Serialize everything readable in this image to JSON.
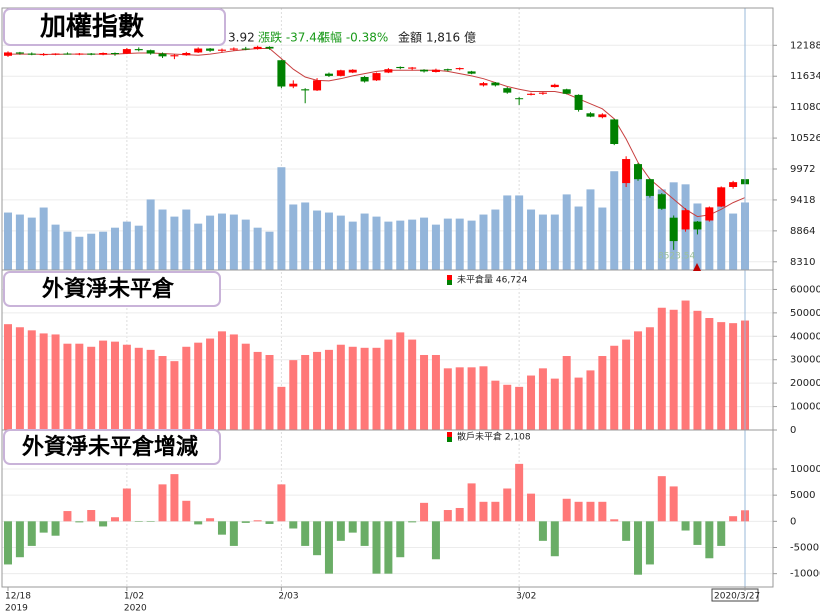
{
  "chart_data": [
    {
      "type": "candlestick",
      "title": "加權指數",
      "quote": [
        "3.92",
        "漲跌 -37.44",
        "漲幅 -0.38%",
        "金額 1,816 億"
      ],
      "low_label": "8523.54",
      "categories": [
        "12/18",
        null,
        null,
        null,
        null,
        null,
        null,
        null,
        null,
        null,
        "1/02",
        null,
        null,
        null,
        null,
        null,
        null,
        null,
        null,
        null,
        null,
        null,
        null,
        "2/03",
        null,
        null,
        null,
        null,
        null,
        null,
        null,
        null,
        null,
        null,
        null,
        null,
        null,
        null,
        null,
        null,
        null,
        null,
        null,
        "3/02",
        null,
        null,
        null,
        null,
        null,
        null,
        null,
        null,
        null,
        null,
        null,
        null,
        null,
        null,
        null,
        null,
        null,
        null,
        "2020/3/27"
      ],
      "year_row": [
        "2019",
        null,
        null,
        null,
        null,
        null,
        null,
        null,
        null,
        null,
        "2020",
        null,
        null,
        null,
        null,
        null,
        null,
        null,
        null,
        null,
        null,
        null,
        null,
        null,
        null,
        null,
        null,
        null,
        null,
        null,
        null,
        null,
        null,
        null,
        null,
        null,
        null,
        null,
        null,
        null,
        null,
        null,
        null,
        null,
        null,
        null,
        null,
        null,
        null,
        null,
        null,
        null,
        null,
        null,
        null,
        null,
        null,
        null,
        null,
        null,
        null,
        null,
        null
      ],
      "open": [
        12000,
        12060,
        12040,
        12020,
        12030,
        12040,
        12030,
        12040,
        12020,
        12050,
        12040,
        12120,
        12100,
        12040,
        11990,
        12010,
        12060,
        12130,
        12090,
        12110,
        12130,
        12120,
        12160,
        11920,
        11450,
        11400,
        11380,
        11680,
        11640,
        11700,
        11620,
        11560,
        11700,
        11800,
        11770,
        11750,
        11710,
        11760,
        11760,
        11720,
        11470,
        11520,
        11420,
        11240,
        11300,
        11320,
        11440,
        11400,
        11300,
        10970,
        10900,
        10860,
        9720,
        10060,
        9790,
        9520,
        9100,
        8890,
        9030,
        9050,
        9300,
        9650,
        9790
      ],
      "high": [
        12080,
        12070,
        12060,
        12050,
        12045,
        12060,
        12050,
        12050,
        12060,
        12060,
        12140,
        12150,
        12110,
        12060,
        12030,
        12070,
        12150,
        12140,
        12130,
        12150,
        12160,
        12180,
        12170,
        11930,
        11560,
        11420,
        11600,
        11700,
        11750,
        11760,
        11640,
        11700,
        11780,
        11810,
        11800,
        11760,
        11770,
        11770,
        11790,
        11730,
        11530,
        11530,
        11440,
        11260,
        11340,
        11350,
        11500,
        11410,
        11310,
        10990,
        10970,
        10870,
        10200,
        10080,
        9800,
        9540,
        9140,
        9270,
        9040,
        9300,
        9660,
        9760,
        9800
      ],
      "low": [
        11980,
        12020,
        12010,
        12000,
        12010,
        12020,
        12010,
        12010,
        12010,
        12000,
        12030,
        12080,
        12020,
        11960,
        11940,
        12000,
        12050,
        12070,
        12060,
        12090,
        12100,
        12110,
        12110,
        11420,
        11420,
        11150,
        11370,
        11620,
        11630,
        11690,
        11520,
        11550,
        11690,
        11760,
        11740,
        11700,
        11700,
        11720,
        11740,
        11670,
        11450,
        11450,
        11320,
        11120,
        11290,
        11300,
        11430,
        11310,
        11000,
        10900,
        10880,
        10400,
        9650,
        9760,
        9460,
        9240,
        8523.54,
        8850,
        8800,
        9030,
        9290,
        9620,
        9680
      ],
      "close": [
        12060,
        12040,
        12020,
        12030,
        12040,
        12030,
        12040,
        12020,
        12050,
        12030,
        12120,
        12100,
        12040,
        11990,
        12010,
        12050,
        12130,
        12090,
        12110,
        12130,
        12120,
        12160,
        12130,
        11450,
        11500,
        11380,
        11560,
        11640,
        11740,
        11750,
        11540,
        11690,
        11760,
        11780,
        11790,
        11720,
        11750,
        11740,
        11780,
        11680,
        11510,
        11470,
        11340,
        11230,
        11320,
        11340,
        11480,
        11320,
        11030,
        10910,
        10950,
        10420,
        10150,
        9790,
        9490,
        9260,
        8681,
        9234,
        8890,
        9285,
        9644,
        9736.36,
        9698.92
      ],
      "up_color": "#ff0000",
      "down_color": "#008000",
      "ma": {
        "color": "#c84040",
        "values": [
          12030,
          12030,
          12030,
          12025,
          12025,
          12030,
          12030,
          12030,
          12030,
          12030,
          12040,
          12050,
          12050,
          12040,
          12030,
          12020,
          12010,
          12030,
          12060,
          12090,
          12110,
          12130,
          12130,
          11950,
          11760,
          11620,
          11560,
          11550,
          11590,
          11640,
          11680,
          11720,
          11740,
          11740,
          11740,
          11740,
          11740,
          11720,
          11680,
          11640,
          11590,
          11520,
          11450,
          11400,
          11360,
          11360,
          11360,
          11320,
          11230,
          11140,
          11050,
          10870,
          10510,
          10090,
          9790,
          9610,
          9430,
          9250,
          9120,
          9150,
          9250,
          9370,
          9460
        ]
      },
      "volume": {
        "color": "#93b5da",
        "lim": [
          0,
          7046
        ],
        "values": [
          1545,
          1491,
          1409,
          1680,
          1220,
          1030,
          894,
          976,
          1030,
          1138,
          1301,
          1192,
          1897,
          1626,
          1436,
          1626,
          1247,
          1463,
          1518,
          1491,
          1355,
          1138,
          1030,
          2764,
          1762,
          1816,
          1599,
          1545,
          1463,
          1301,
          1518,
          1436,
          1301,
          1328,
          1355,
          1409,
          1220,
          1382,
          1382,
          1328,
          1491,
          1626,
          2005,
          2005,
          1626,
          1491,
          1491,
          2033,
          1707,
          2168,
          1680,
          2656,
          2981,
          2656,
          2304,
          2168,
          2358,
          2304,
          1789,
          1518,
          1816,
          1518,
          1816
        ]
      },
      "ylim": [
        8163,
        12856
      ],
      "yticks": [
        8310,
        8864,
        9418,
        9972,
        10526,
        11080,
        11634,
        12188
      ],
      "grid": true
    },
    {
      "type": "bar",
      "title": "外資淨未平倉",
      "legend_text": "未平倉量 46,724",
      "color": "#ff7878",
      "values": [
        45175,
        43860,
        42540,
        41230,
        40790,
        36840,
        36840,
        35530,
        38160,
        37720,
        36400,
        35090,
        34210,
        31580,
        29390,
        35530,
        37280,
        39040,
        42110,
        40790,
        36840,
        33330,
        32020,
        18420,
        29820,
        32020,
        33330,
        34210,
        36400,
        35530,
        35090,
        35090,
        38600,
        41670,
        38600,
        32020,
        32020,
        26320,
        26750,
        26750,
        27190,
        21050,
        19300,
        18420,
        23250,
        26320,
        21930,
        31580,
        22370,
        25440,
        31580,
        35960,
        38600,
        42110,
        43860,
        52190,
        51320,
        55260,
        50880,
        47810,
        46050,
        45610,
        46724
      ],
      "ylim": [
        0,
        68300
      ],
      "yticks": [
        0,
        10000,
        20000,
        30000,
        40000,
        50000,
        60000
      ],
      "grid": true
    },
    {
      "type": "bar",
      "title": "外資淨未平倉增減",
      "legend_text": "散戶未平倉 2,108",
      "color": "#ff7878",
      "negative_color": "#6aad66",
      "values": [
        -8240,
        -6860,
        -4700,
        -2160,
        -2750,
        1960,
        -200,
        2160,
        -980,
        780,
        6270,
        -100,
        -100,
        7060,
        9020,
        3920,
        -590,
        590,
        -2550,
        -4700,
        -300,
        200,
        -500,
        7060,
        -1370,
        -4700,
        -6470,
        -10000,
        -3730,
        -2160,
        -4700,
        -10000,
        -10000,
        -6860,
        -200,
        3530,
        -7250,
        2160,
        2550,
        7250,
        3730,
        3730,
        6270,
        10980,
        5290,
        -3730,
        -6670,
        4310,
        3730,
        3730,
        3730,
        390,
        -3730,
        -10200,
        -8240,
        8630,
        6670,
        -1760,
        -4510,
        -7060,
        -4700,
        980,
        2108
      ],
      "ylim": [
        -12550,
        17450
      ],
      "yticks": [
        -10000,
        -5000,
        0,
        5000,
        10000
      ],
      "grid": true
    }
  ]
}
